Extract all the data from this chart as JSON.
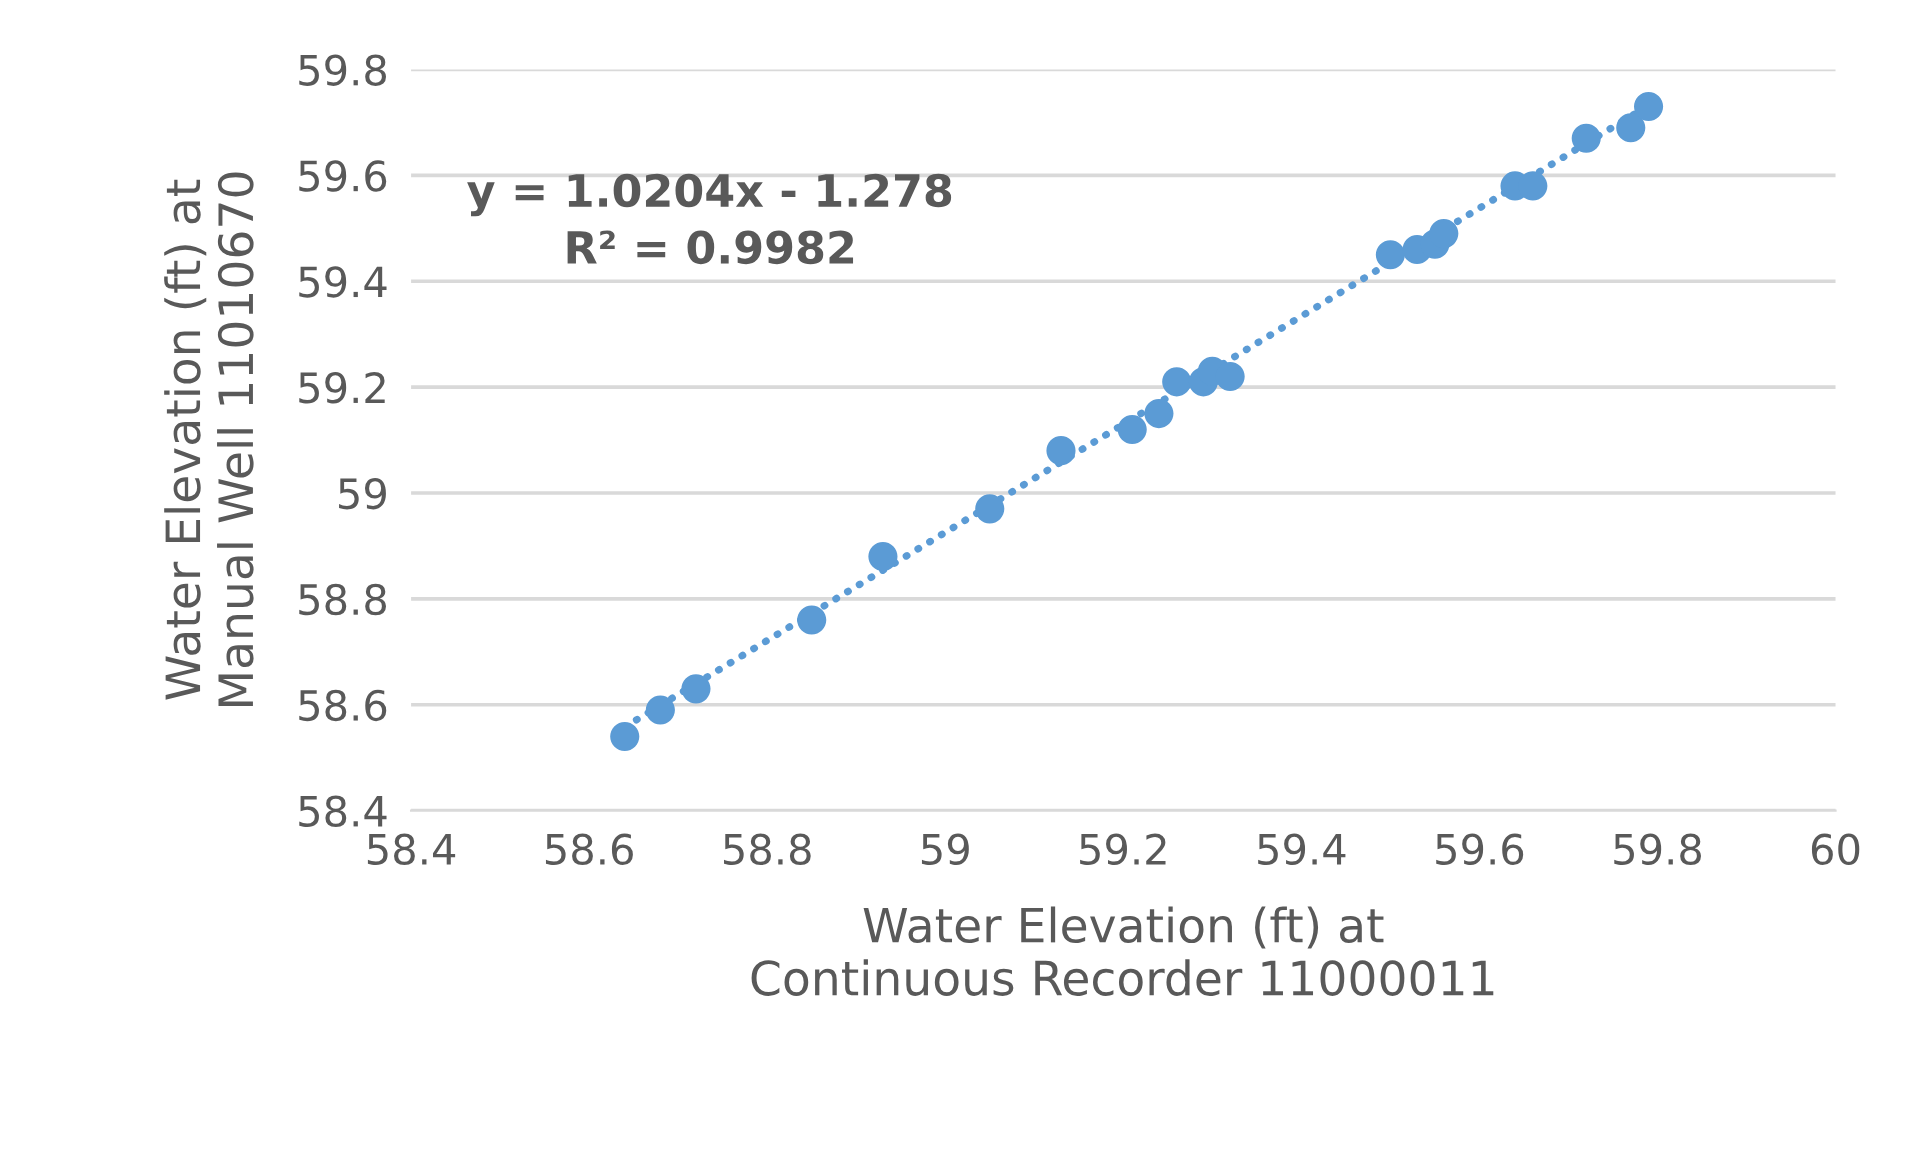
{
  "chart_data": {
    "type": "scatter",
    "xlabel": "Water Elevation (ft) at\nContinuous Recorder 11000011",
    "ylabel": "Water Elevation (ft) at\nManual Well 11010670",
    "xlim": [
      58.4,
      60
    ],
    "xticks": [
      58.4,
      58.6,
      58.8,
      59,
      59.2,
      59.4,
      59.6,
      59.8,
      60
    ],
    "ylim": [
      58.4,
      59.8
    ],
    "yticks": [
      58.4,
      58.6,
      58.8,
      59,
      59.2,
      59.4,
      59.6,
      59.8
    ],
    "grid": "y",
    "annotations": [
      {
        "text": "y = 1.0204x - 1.278\nR² = 0.9982"
      }
    ],
    "series": [
      {
        "marker": "circle",
        "color": "#5b9bd5",
        "x": [
          58.64,
          58.68,
          58.72,
          58.85,
          58.93,
          59.05,
          59.13,
          59.21,
          59.24,
          59.26,
          59.29,
          59.3,
          59.32,
          59.5,
          59.53,
          59.55,
          59.56,
          59.64,
          59.66,
          59.72,
          59.77,
          59.79
        ],
        "values": [
          58.54,
          58.59,
          58.63,
          58.76,
          58.88,
          58.97,
          59.08,
          59.12,
          59.15,
          59.21,
          59.21,
          59.23,
          59.22,
          59.45,
          59.46,
          59.47,
          59.49,
          59.58,
          59.58,
          59.67,
          59.69,
          59.73
        ]
      },
      {
        "type": "line",
        "color": "#5b9bd5",
        "line_style": "dotted",
        "x": [
          58.64,
          59.79
        ],
        "values": [
          58.558,
          59.732
        ]
      }
    ]
  }
}
